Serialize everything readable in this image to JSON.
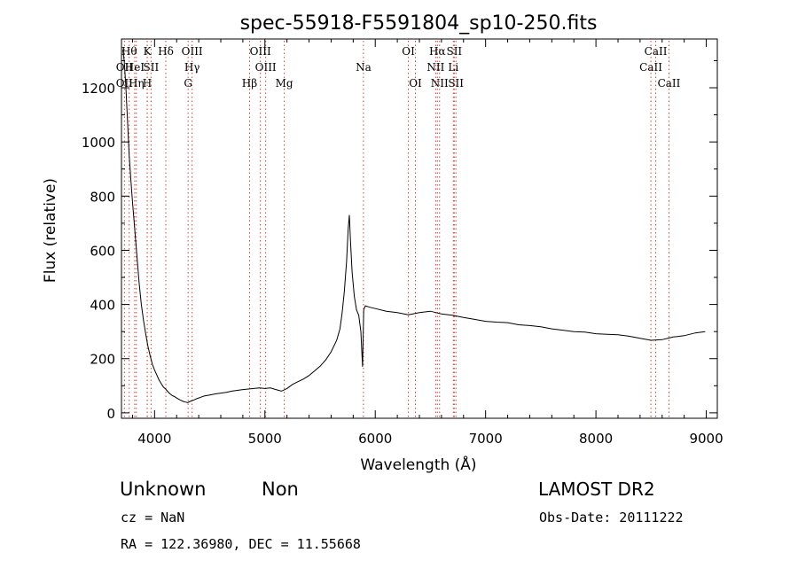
{
  "chart_data": {
    "type": "line",
    "title": "spec-55918-F5591804_sp10-250.fits",
    "xlabel": "Wavelength (Å)",
    "ylabel": "Flux (relative)",
    "xlim": [
      3700,
      9100
    ],
    "ylim": [
      -20,
      1380
    ],
    "xticks": [
      4000,
      5000,
      6000,
      7000,
      8000,
      9000
    ],
    "yticks": [
      0,
      200,
      400,
      600,
      800,
      1000,
      1200
    ],
    "grid": false,
    "series": [
      {
        "values": [
          [
            3712,
            1340
          ],
          [
            3725,
            1300
          ],
          [
            3740,
            1200
          ],
          [
            3755,
            1080
          ],
          [
            3770,
            950
          ],
          [
            3785,
            860
          ],
          [
            3800,
            780
          ],
          [
            3820,
            680
          ],
          [
            3840,
            580
          ],
          [
            3860,
            480
          ],
          [
            3880,
            400
          ],
          [
            3900,
            340
          ],
          [
            3920,
            290
          ],
          [
            3940,
            245
          ],
          [
            3960,
            210
          ],
          [
            3980,
            180
          ],
          [
            4000,
            158
          ],
          [
            4020,
            140
          ],
          [
            4040,
            122
          ],
          [
            4060,
            108
          ],
          [
            4080,
            95
          ],
          [
            4100,
            88
          ],
          [
            4120,
            78
          ],
          [
            4140,
            70
          ],
          [
            4160,
            64
          ],
          [
            4180,
            60
          ],
          [
            4200,
            55
          ],
          [
            4220,
            50
          ],
          [
            4240,
            46
          ],
          [
            4260,
            42
          ],
          [
            4280,
            40
          ],
          [
            4300,
            38
          ],
          [
            4320,
            42
          ],
          [
            4340,
            45
          ],
          [
            4360,
            48
          ],
          [
            4380,
            52
          ],
          [
            4400,
            55
          ],
          [
            4420,
            58
          ],
          [
            4450,
            62
          ],
          [
            4500,
            66
          ],
          [
            4550,
            70
          ],
          [
            4600,
            73
          ],
          [
            4650,
            76
          ],
          [
            4700,
            80
          ],
          [
            4750,
            83
          ],
          [
            4800,
            86
          ],
          [
            4850,
            88
          ],
          [
            4900,
            90
          ],
          [
            4950,
            92
          ],
          [
            5000,
            90
          ],
          [
            5050,
            92
          ],
          [
            5100,
            86
          ],
          [
            5150,
            80
          ],
          [
            5200,
            90
          ],
          [
            5250,
            105
          ],
          [
            5300,
            115
          ],
          [
            5350,
            125
          ],
          [
            5400,
            138
          ],
          [
            5450,
            155
          ],
          [
            5500,
            172
          ],
          [
            5550,
            195
          ],
          [
            5600,
            225
          ],
          [
            5650,
            268
          ],
          [
            5680,
            310
          ],
          [
            5700,
            370
          ],
          [
            5720,
            450
          ],
          [
            5740,
            560
          ],
          [
            5755,
            680
          ],
          [
            5765,
            730
          ],
          [
            5775,
            640
          ],
          [
            5790,
            520
          ],
          [
            5810,
            430
          ],
          [
            5830,
            380
          ],
          [
            5850,
            360
          ],
          [
            5870,
            300
          ],
          [
            5885,
            170
          ],
          [
            5895,
            380
          ],
          [
            5910,
            395
          ],
          [
            5950,
            390
          ],
          [
            6000,
            385
          ],
          [
            6100,
            375
          ],
          [
            6200,
            370
          ],
          [
            6300,
            362
          ],
          [
            6400,
            370
          ],
          [
            6500,
            375
          ],
          [
            6600,
            365
          ],
          [
            6700,
            360
          ],
          [
            6800,
            352
          ],
          [
            6900,
            345
          ],
          [
            7000,
            338
          ],
          [
            7100,
            335
          ],
          [
            7200,
            333
          ],
          [
            7300,
            325
          ],
          [
            7400,
            322
          ],
          [
            7500,
            318
          ],
          [
            7600,
            310
          ],
          [
            7700,
            305
          ],
          [
            7800,
            300
          ],
          [
            7900,
            298
          ],
          [
            8000,
            292
          ],
          [
            8100,
            290
          ],
          [
            8200,
            288
          ],
          [
            8300,
            283
          ],
          [
            8400,
            275
          ],
          [
            8500,
            268
          ],
          [
            8600,
            270
          ],
          [
            8700,
            280
          ],
          [
            8800,
            285
          ],
          [
            8900,
            295
          ],
          [
            8990,
            300
          ]
        ]
      }
    ],
    "spectral_lines": [
      {
        "wavelength": 3727,
        "label": "OII",
        "row": 2
      },
      {
        "wavelength": 3727,
        "label": "OII",
        "row": 3
      },
      {
        "wavelength": 3770,
        "label": "Hθ",
        "row": 1
      },
      {
        "wavelength": 3820,
        "label": "HeI",
        "row": 2
      },
      {
        "wavelength": 3835,
        "label": "Hη",
        "row": 3
      },
      {
        "wavelength": 3934,
        "label": "K",
        "row": 1
      },
      {
        "wavelength": 3933,
        "label": "H",
        "row": 3
      },
      {
        "wavelength": 3968,
        "label": "SII",
        "row": 2
      },
      {
        "wavelength": 4102,
        "label": "Hδ",
        "row": 1
      },
      {
        "wavelength": 4340,
        "label": "OIII",
        "row": 1
      },
      {
        "wavelength": 4340,
        "label": "Hγ",
        "row": 2
      },
      {
        "wavelength": 4304,
        "label": "G",
        "row": 3
      },
      {
        "wavelength": 4861,
        "label": "Hβ",
        "row": 3
      },
      {
        "wavelength": 4959,
        "label": "OIII",
        "row": 1
      },
      {
        "wavelength": 5007,
        "label": "OIII",
        "row": 2
      },
      {
        "wavelength": 5175,
        "label": "Mg",
        "row": 3
      },
      {
        "wavelength": 5893,
        "label": "Na",
        "row": 2
      },
      {
        "wavelength": 6300,
        "label": "OI",
        "row": 1
      },
      {
        "wavelength": 6364,
        "label": "OI",
        "row": 3
      },
      {
        "wavelength": 6563,
        "label": "Hα",
        "row": 1
      },
      {
        "wavelength": 6548,
        "label": "NII",
        "row": 2
      },
      {
        "wavelength": 6583,
        "label": "NII",
        "row": 3
      },
      {
        "wavelength": 6716,
        "label": "SII",
        "row": 1
      },
      {
        "wavelength": 6708,
        "label": "Li",
        "row": 2
      },
      {
        "wavelength": 6731,
        "label": "SII",
        "row": 3
      },
      {
        "wavelength": 8498,
        "label": "CaII",
        "row": 2
      },
      {
        "wavelength": 8542,
        "label": "CaII",
        "row": 1
      },
      {
        "wavelength": 8662,
        "label": "CaII",
        "row": 3
      }
    ]
  },
  "info": {
    "object_type": "Unknown",
    "object_class": "Non",
    "survey": "LAMOST DR2",
    "redshift": "cz = NaN",
    "obs_date": "Obs-Date: 20111222",
    "coordinates": "RA = 122.36980, DEC =  11.55668"
  }
}
